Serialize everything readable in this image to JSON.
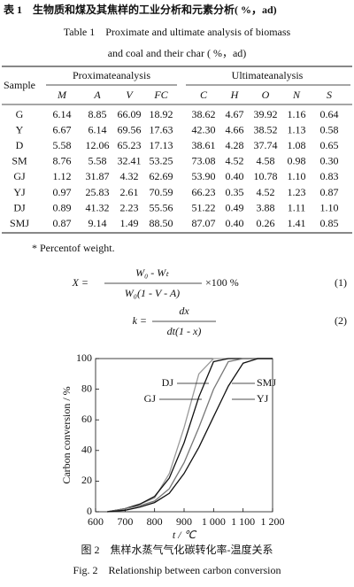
{
  "table_caption": {
    "zh": "表 1　生物质和煤及其焦样的工业分析和元素分析( %，ad)",
    "en_line1": "Table 1　Proximate and ultimate analysis of biomass",
    "en_line2": "and coal and their char ( %，ad)"
  },
  "table": {
    "sample_header": "Sample",
    "group_headers": [
      "Proximateanalysis",
      "Ultimateanalysis"
    ],
    "columns": [
      "M",
      "A",
      "V",
      "FC",
      "C",
      "H",
      "O",
      "N",
      "S"
    ],
    "rows": [
      [
        "G",
        "6.14",
        "8.85",
        "66.09",
        "18.92",
        "38.62",
        "4.67",
        "39.92",
        "1.16",
        "0.64"
      ],
      [
        "Y",
        "6.67",
        "6.14",
        "69.56",
        "17.63",
        "42.30",
        "4.66",
        "38.52",
        "1.13",
        "0.58"
      ],
      [
        "D",
        "5.58",
        "12.06",
        "65.23",
        "17.13",
        "38.61",
        "4.28",
        "37.74",
        "1.08",
        "0.65"
      ],
      [
        "SM",
        "8.76",
        "5.58",
        "32.41",
        "53.25",
        "73.08",
        "4.52",
        "4.58",
        "0.98",
        "0.30"
      ],
      [
        "GJ",
        "1.12",
        "31.87",
        "4.32",
        "62.69",
        "53.90",
        "0.40",
        "10.78",
        "1.10",
        "0.83"
      ],
      [
        "YJ",
        "0.97",
        "25.83",
        "2.61",
        "70.59",
        "66.23",
        "0.35",
        "4.52",
        "1.23",
        "0.87"
      ],
      [
        "DJ",
        "0.89",
        "41.32",
        "2.23",
        "55.56",
        "51.22",
        "0.49",
        "3.88",
        "1.11",
        "1.10"
      ],
      [
        "SMJ",
        "0.87",
        "9.14",
        "1.49",
        "88.50",
        "87.07",
        "0.40",
        "0.26",
        "1.41",
        "0.85"
      ]
    ],
    "footnote": "* Percentof weight."
  },
  "equations": [
    {
      "lhs": "X =",
      "numerator": "W₀ - Wₜ",
      "denominator": "W₀(1 - V - A)",
      "rhs": "×100 %",
      "number": "(1)"
    },
    {
      "lhs": "k =",
      "numerator": "dx",
      "denominator": "dt(1 - x)",
      "number": "(2)"
    }
  ],
  "chart_data": {
    "type": "line",
    "x_label": "t / ℃",
    "y_label": "Carbon conversion / %",
    "x": [
      640,
      700,
      750,
      800,
      850,
      900,
      950,
      1000,
      1050,
      1100,
      1150,
      1200
    ],
    "series": [
      {
        "name": "DJ",
        "color": "#9a9a9a",
        "values": [
          0,
          2,
          5,
          9,
          25,
          55,
          90,
          100,
          100,
          100,
          100,
          100
        ]
      },
      {
        "name": "GJ",
        "color": "#111111",
        "values": [
          0,
          2,
          5,
          10,
          22,
          45,
          75,
          98,
          100,
          100,
          100,
          100
        ]
      },
      {
        "name": "SMJ",
        "color": "#777777",
        "values": [
          0,
          2,
          4,
          7,
          15,
          32,
          55,
          80,
          98,
          100,
          100,
          100
        ]
      },
      {
        "name": "YJ",
        "color": "#111111",
        "values": [
          0,
          1,
          3,
          6,
          12,
          25,
          42,
          62,
          82,
          97,
          100,
          100
        ]
      }
    ],
    "xlim": [
      600,
      1200
    ],
    "ylim": [
      0,
      100
    ],
    "xticks": [
      600,
      700,
      800,
      900,
      {
        "value": 1000,
        "label": "1 000"
      },
      {
        "value": 1100,
        "label": "1 100"
      },
      {
        "value": 1200,
        "label": "1 200"
      }
    ],
    "yticks": [
      0,
      20,
      40,
      60,
      80,
      100
    ]
  },
  "figure_caption": {
    "zh": "图 2　焦样水蒸气气化碳转化率-温度关系",
    "en": "Fig. 2　Relationship between carbon conversion"
  }
}
